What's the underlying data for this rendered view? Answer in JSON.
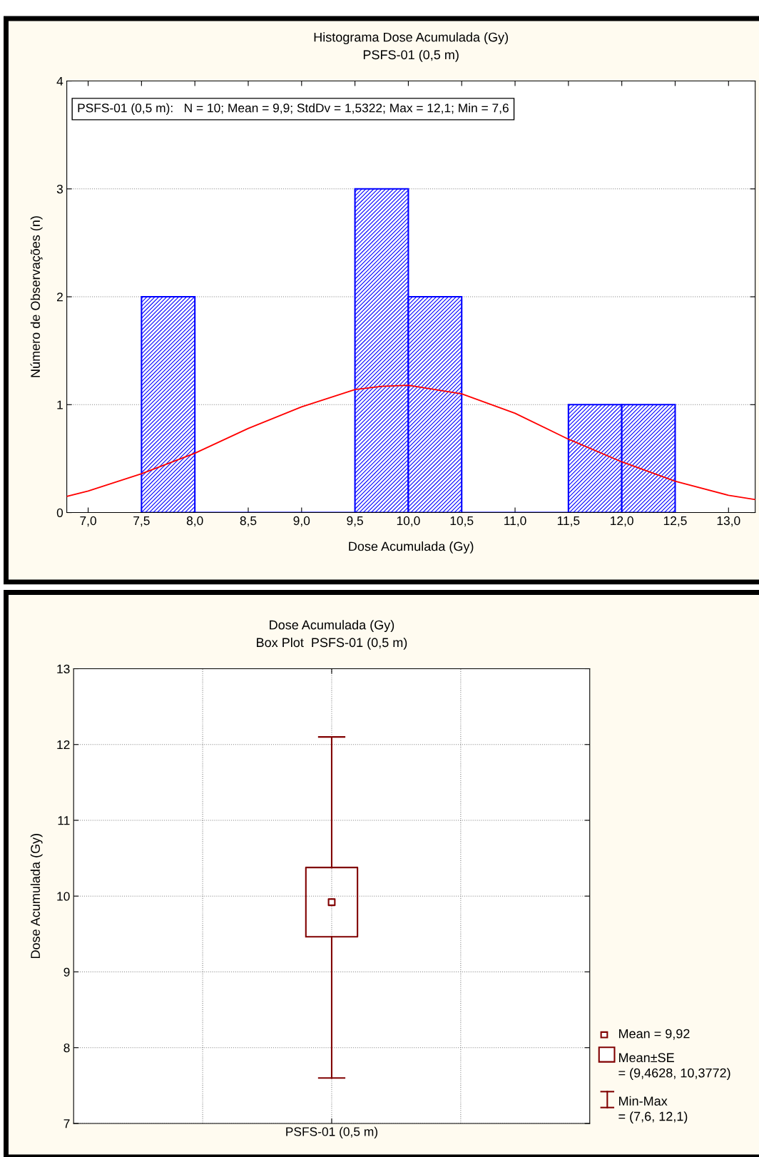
{
  "chart_data": [
    {
      "type": "histogram",
      "title": "Histograma Dose Acumulada (Gy)",
      "subtitle": "PSFS-01 (0,5 m)",
      "xlabel": "Dose Acumulada (Gy)",
      "ylabel": "Número de Observações (n)",
      "bins": [
        7.5,
        8.0,
        8.5,
        9.0,
        9.5,
        10.0,
        10.5,
        11.0,
        11.5,
        12.0,
        12.5
      ],
      "values": [
        2,
        0,
        0,
        0,
        3,
        2,
        0,
        0,
        1,
        1
      ],
      "color": "#0000ff",
      "series": [
        {
          "type": "line",
          "color": "#ff0000",
          "x": [
            6.8,
            7.0,
            7.5,
            8.0,
            8.5,
            9.0,
            9.5,
            9.75,
            10.0,
            10.5,
            11.0,
            11.5,
            12.0,
            12.5,
            13.0,
            13.25
          ],
          "values": [
            0.15,
            0.2,
            0.36,
            0.55,
            0.78,
            0.98,
            1.14,
            1.17,
            1.18,
            1.1,
            0.92,
            0.68,
            0.47,
            0.29,
            0.16,
            0.12
          ]
        }
      ],
      "annotations": [
        "PSFS-01 (0,5 m):   N = 10; Mean = 9,9; StdDv = 1,5322; Max = 12,1; Min = 7,6"
      ],
      "xlim": [
        6.8,
        13.25
      ],
      "xticks": [
        {
          "value": 7.0,
          "label": "7,0"
        },
        {
          "value": 7.5,
          "label": "7,5"
        },
        {
          "value": 8.0,
          "label": "8,0"
        },
        {
          "value": 8.5,
          "label": "8,5"
        },
        {
          "value": 9.0,
          "label": "9,0"
        },
        {
          "value": 9.5,
          "label": "9,5"
        },
        {
          "value": 10.0,
          "label": "10,0"
        },
        {
          "value": 10.5,
          "label": "10,5"
        },
        {
          "value": 11.0,
          "label": "11,0"
        },
        {
          "value": 11.5,
          "label": "11,5"
        },
        {
          "value": 12.0,
          "label": "12,0"
        },
        {
          "value": 12.5,
          "label": "12,5"
        },
        {
          "value": 13.0,
          "label": "13,0"
        }
      ],
      "ylim": [
        0,
        4
      ],
      "yticks": [
        0,
        1,
        2,
        3,
        4
      ],
      "grid": "y"
    },
    {
      "type": "box",
      "title": "Dose Acumulada (Gy)",
      "subtitle": "Box Plot  PSFS-01 (0,5 m)",
      "ylabel": "Dose Acumulada (Gy)",
      "categories": [
        "PSFS-01 (0,5 m)"
      ],
      "color": "#800000",
      "boxes": [
        {
          "low": 7.6,
          "q1": 9.4628,
          "median": 9.92,
          "q3": 10.3772,
          "high": 12.1
        }
      ],
      "annotations": [
        "Mean = 9,92",
        "Mean±SE\n= (9,4628, 10,3772)",
        "Min-Max\n= (7,6, 12,1)"
      ],
      "ylim": [
        7,
        13
      ],
      "yticks": [
        7,
        8,
        9,
        10,
        11,
        12,
        13
      ],
      "grid": true
    }
  ]
}
